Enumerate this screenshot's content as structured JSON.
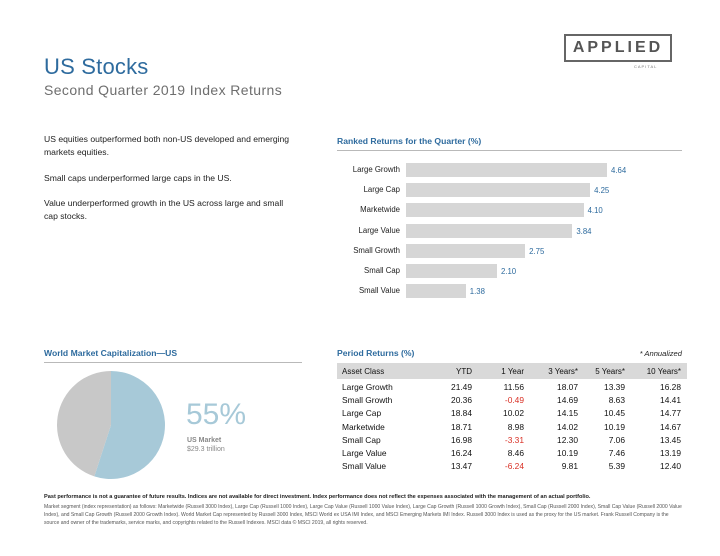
{
  "header": {
    "title": "US Stocks",
    "subtitle": "Second Quarter 2019 Index Returns",
    "logo": "APPLIED",
    "logo_sub": "CAPITAL"
  },
  "bullets": [
    "US equities outperformed both non-US developed and emerging markets equities.",
    "Small caps underperformed large caps in the US.",
    "Value underperformed growth in the US across large and small cap stocks."
  ],
  "ranked": {
    "title": "Ranked Returns for the Quarter (%)"
  },
  "chart_data": [
    {
      "type": "bar",
      "orientation": "horizontal",
      "title": "Ranked Returns for the Quarter (%)",
      "categories": [
        "Large Growth",
        "Large Cap",
        "Marketwide",
        "Large Value",
        "Small Growth",
        "Small Cap",
        "Small Value"
      ],
      "values": [
        4.64,
        4.25,
        4.1,
        3.84,
        2.75,
        2.1,
        1.38
      ],
      "value_labels": [
        "4.64",
        "4.25",
        "4.10",
        "3.84",
        "2.75",
        "2.10",
        "1.38"
      ],
      "xlim": [
        0,
        5
      ],
      "grid": false,
      "colors": {
        "bar": "#d6d6d6",
        "label": "#2e6b9e"
      }
    },
    {
      "type": "pie",
      "title": "World Market Capitalization—US",
      "values": [
        55,
        45
      ],
      "colors": [
        "#a7c9d8",
        "#c8c8c8"
      ]
    }
  ],
  "world": {
    "title": "World Market Capitalization—US",
    "pct": "55%",
    "label1": "US Market",
    "label2": "$29.3 trillion"
  },
  "period": {
    "title": "Period Returns (%)",
    "note": "* Annualized",
    "columns": [
      "Asset Class",
      "YTD",
      "1 Year",
      "3 Years*",
      "5 Years*",
      "10 Years*"
    ],
    "rows": [
      [
        "Large Growth",
        "21.49",
        "11.56",
        "18.07",
        "13.39",
        "16.28"
      ],
      [
        "Small Growth",
        "20.36",
        "-0.49",
        "14.69",
        "8.63",
        "14.41"
      ],
      [
        "Large Cap",
        "18.84",
        "10.02",
        "14.15",
        "10.45",
        "14.77"
      ],
      [
        "Marketwide",
        "18.71",
        "8.98",
        "14.02",
        "10.19",
        "14.67"
      ],
      [
        "Small Cap",
        "16.98",
        "-3.31",
        "12.30",
        "7.06",
        "13.45"
      ],
      [
        "Large Value",
        "16.24",
        "8.46",
        "10.19",
        "7.46",
        "13.19"
      ],
      [
        "Small Value",
        "13.47",
        "-6.24",
        "9.81",
        "5.39",
        "12.40"
      ]
    ]
  },
  "footer": {
    "bold": "Past performance is not a guarantee of future results. Indices are not available for direct investment. Index performance does not reflect the expenses associated with the management of an actual portfolio.",
    "text": "Market segment (index representation) as follows: Marketwide (Russell 3000 Index), Large Cap (Russell 1000 Index), Large Cap Value (Russell 1000 Value Index), Large Cap Growth (Russell 1000 Growth Index), Small Cap (Russell 2000 Index), Small Cap Value (Russell 2000 Value Index), and Small Cap Growth (Russell 2000 Growth Index). World Market Cap represented by Russell 3000 Index, MSCI World ex USA IMI Index, and MSCI Emerging Markets IMI Index. Russell 3000 Index is used as the proxy for the US market. Frank Russell Company is the source and owner of the trademarks, service marks, and copyrights related to the Russell Indexes. MSCI data © MSCI 2019, all rights reserved."
  }
}
